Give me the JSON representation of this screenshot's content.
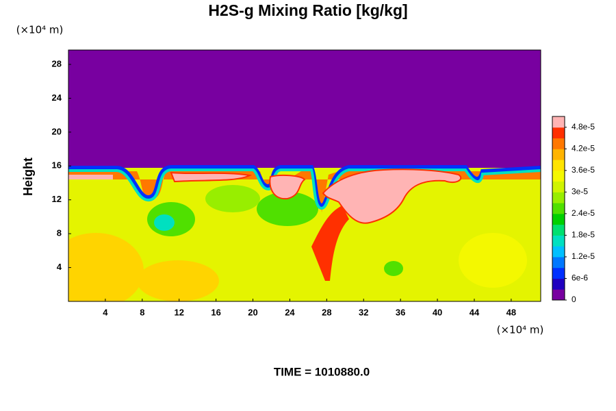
{
  "chart_data": {
    "type": "contour",
    "title": "H2S-g Mixing Ratio [kg/kg]",
    "y_label": "Height",
    "y_unit": "(×10⁴ m)",
    "x_unit": "(×10⁴ m)",
    "time_label": "TIME = 1010880.0",
    "xlim": [
      0,
      51.2
    ],
    "ylim": [
      0,
      29.7
    ],
    "xticks": [
      4,
      8,
      12,
      16,
      20,
      24,
      28,
      32,
      36,
      40,
      44,
      48
    ],
    "yticks": [
      4,
      8,
      12,
      16,
      20,
      24,
      28
    ],
    "clim": [
      0,
      5.1e-05
    ],
    "colors": [
      "#7800a0",
      "#2000c0",
      "#0030ff",
      "#0078ff",
      "#00c0ff",
      "#00e0c0",
      "#00e070",
      "#00d000",
      "#50e000",
      "#98ee00",
      "#d0f400",
      "#f4f800",
      "#ffe400",
      "#ffb400",
      "#ff7800",
      "#ff3000",
      "#ffb4b4"
    ],
    "cticks": [
      0,
      {
        "value": 6e-06,
        "label": "6e-6"
      },
      {
        "value": 1.2e-05,
        "label": "1.2e-5"
      },
      {
        "value": 1.8e-05,
        "label": "1.8e-5"
      },
      {
        "value": 2.4e-05,
        "label": "2.4e-5"
      },
      {
        "value": 3e-05,
        "label": "3e-5"
      },
      {
        "value": 3.6e-05,
        "label": "3.6e-5"
      },
      {
        "value": 4.2e-05,
        "label": "4.2e-5"
      },
      {
        "value": 4.8e-05,
        "label": "4.8e-5"
      }
    ]
  }
}
